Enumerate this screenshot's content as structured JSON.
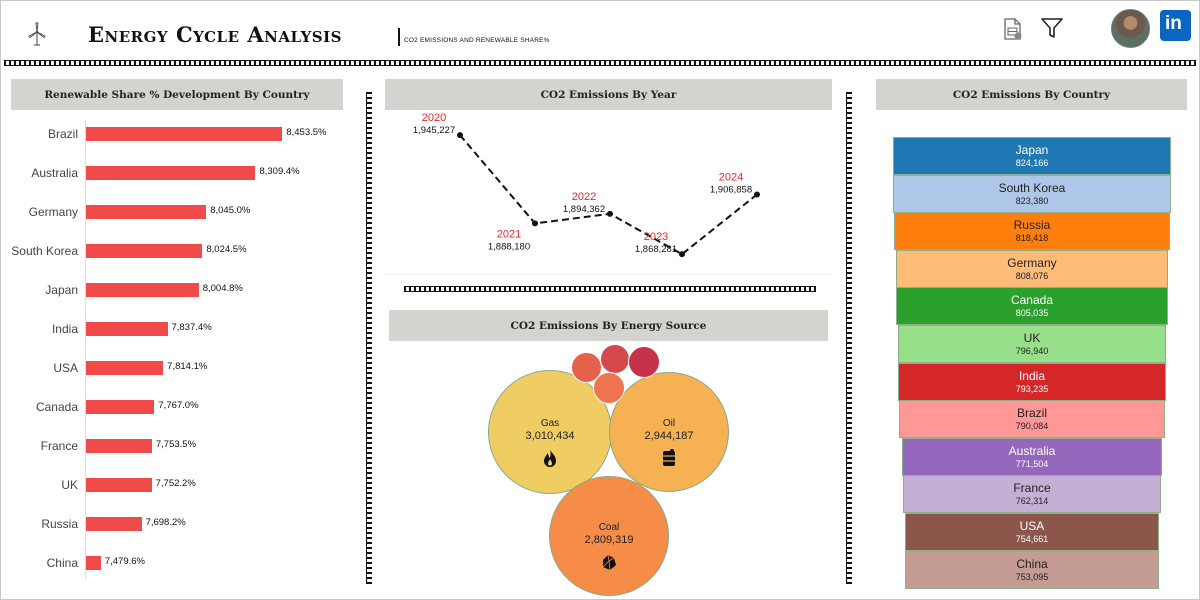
{
  "header": {
    "title": "Energy Cycle Analysis",
    "subtitle": "CO2 EMISSIONS AND RENEWABLE SHARE%",
    "icons": [
      "wind-turbine-icon",
      "export-file-icon",
      "filter-icon",
      "avatar",
      "linkedin-icon"
    ],
    "linkedin_label": "in"
  },
  "panels": {
    "renewable_title": "Renewable Share % Development By Country",
    "co2_year_title": "CO2 Emissions By Year",
    "energy_source_title": "CO2 Emissions By Energy Source",
    "co2_country_title": "CO2 Emissions By Country"
  },
  "chart_data": [
    {
      "type": "bar",
      "title": "Renewable Share % Development By Country",
      "orientation": "horizontal",
      "categories": [
        "Brazil",
        "Australia",
        "Germany",
        "South Korea",
        "Japan",
        "India",
        "USA",
        "Canada",
        "France",
        "UK",
        "Russia",
        "China"
      ],
      "values": [
        8453.5,
        8309.4,
        8045.0,
        8024.5,
        8004.8,
        7837.4,
        7814.1,
        7767.0,
        7753.5,
        7752.2,
        7698.2,
        7479.6
      ],
      "value_labels": [
        "8,453.5%",
        "8,309.4%",
        "8,045.0%",
        "8,024.5%",
        "8,004.8%",
        "7,837.4%",
        "7,814.1%",
        "7,767.0%",
        "7,753.5%",
        "7,752.2%",
        "7,698.2%",
        "7,479.6%"
      ],
      "color": "#f14a4a",
      "axis_min": 7400,
      "axis_max": 8500
    },
    {
      "type": "line",
      "title": "CO2 Emissions By Year",
      "x": [
        "2020",
        "2021",
        "2022",
        "2023",
        "2024"
      ],
      "y": [
        1945227,
        1888180,
        1894362,
        1868281,
        1906858
      ],
      "value_labels": [
        "1,945,227",
        "1,888,180",
        "1,894,362",
        "1,868,281",
        "1,906,858"
      ],
      "line_style": "dashed",
      "line_color": "#111111",
      "year_label_color": "#e8262c",
      "ylim": [
        1860000,
        1955000
      ]
    },
    {
      "type": "bubble",
      "title": "CO2 Emissions By Energy Source",
      "series": [
        {
          "name": "Gas",
          "value": 3010434,
          "label": "3,010,434",
          "color": "#f0cd62",
          "icon": "flame-icon"
        },
        {
          "name": "Oil",
          "value": 2944187,
          "label": "2,944,187",
          "color": "#f6b152",
          "icon": "oil-barrel-icon"
        },
        {
          "name": "Coal",
          "value": 2809319,
          "label": "2,809,319",
          "color": "#f58c48",
          "icon": "coal-icon"
        },
        {
          "name": "",
          "value": null,
          "color": "#e5614b"
        },
        {
          "name": "",
          "value": null,
          "color": "#d44a4a"
        },
        {
          "name": "",
          "value": null,
          "color": "#c7314a"
        },
        {
          "name": "",
          "value": null,
          "color": "#ef7550"
        }
      ]
    },
    {
      "type": "funnel",
      "title": "CO2 Emissions By Country",
      "categories": [
        "Japan",
        "South Korea",
        "Russia",
        "Germany",
        "Canada",
        "UK",
        "India",
        "Brazil",
        "Australia",
        "France",
        "USA",
        "China"
      ],
      "values": [
        824166,
        823380,
        818418,
        808076,
        805035,
        796940,
        793235,
        790084,
        771504,
        762314,
        754661,
        753095
      ],
      "value_labels": [
        "824,166",
        "823,380",
        "818,418",
        "808,076",
        "805,035",
        "796,940",
        "793,235",
        "790,084",
        "771,504",
        "762,314",
        "754,661",
        "753,095"
      ],
      "colors": [
        "#1f77b4",
        "#aec7e8",
        "#ff7f0e",
        "#ffbb78",
        "#2ca02c",
        "#98df8a",
        "#d62728",
        "#ff9896",
        "#9467bd",
        "#c5b0d5",
        "#8c564b",
        "#c49c94"
      ],
      "text_colors": [
        "#ffffff",
        "#222222",
        "#222222",
        "#222222",
        "#ffffff",
        "#222222",
        "#ffffff",
        "#222222",
        "#ffffff",
        "#222222",
        "#ffffff",
        "#222222"
      ]
    }
  ]
}
